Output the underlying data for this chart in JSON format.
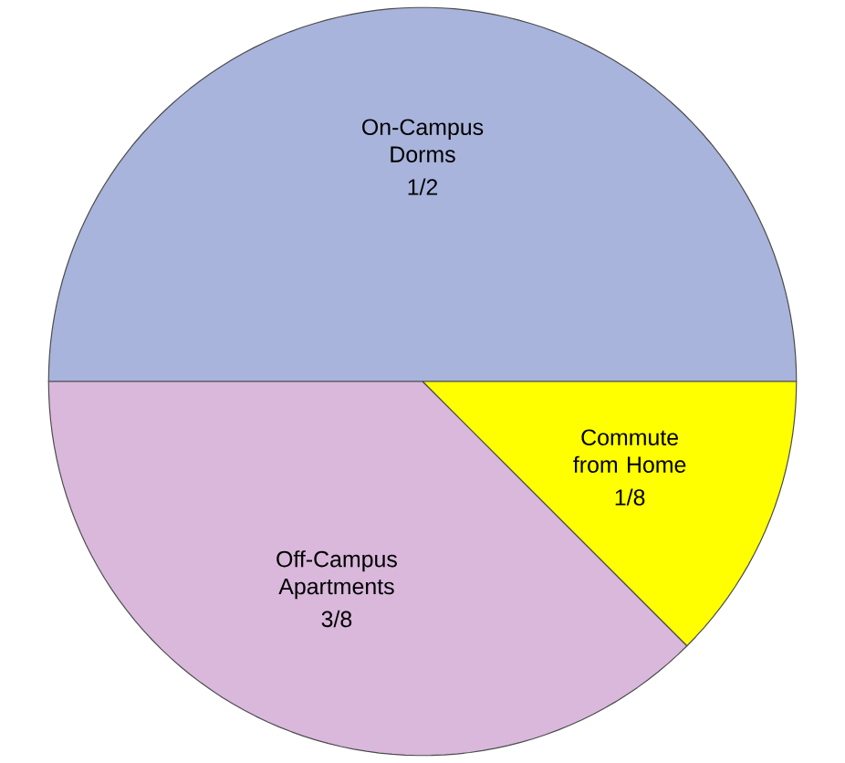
{
  "chart_data": {
    "type": "pie",
    "categories": [
      "On-Campus Dorms",
      "Commute from Home",
      "Off-Campus Apartments"
    ],
    "values": [
      0.5,
      0.125,
      0.375
    ],
    "value_labels": [
      "1/2",
      "1/8",
      "3/8"
    ],
    "colors": [
      "#a9b4dc",
      "#ffff00",
      "#d9b8dc"
    ]
  }
}
